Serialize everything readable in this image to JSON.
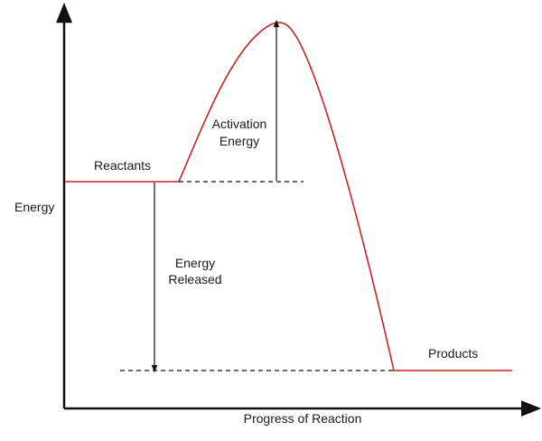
{
  "labels": {
    "y_axis": "Energy",
    "x_axis": "Progress of Reaction",
    "reactants": "Reactants",
    "products": "Products",
    "activation_line1": "Activation",
    "activation_line2": "Energy",
    "released_line1": "Energy",
    "released_line2": "Released"
  },
  "colors": {
    "curve": "#cc2222",
    "axis": "#111111",
    "text": "#1a1a1a"
  }
}
